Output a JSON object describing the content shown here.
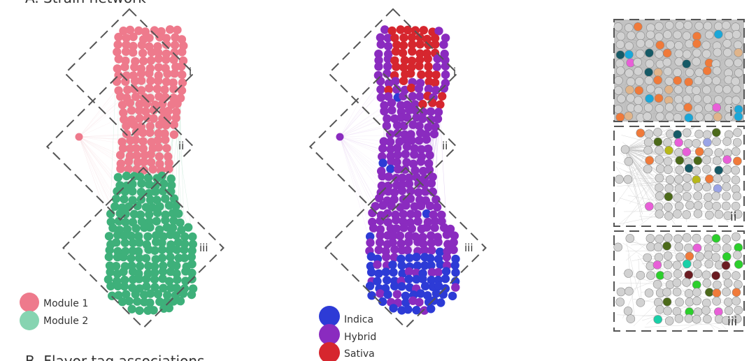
{
  "header": {
    "section_a_title": "A. Strain network",
    "section_b_title": "B. Flavor tag associations"
  },
  "regions": {
    "i": "i",
    "ii": "ii",
    "iii": "iii"
  },
  "legend_modules": [
    {
      "label": "Module 1",
      "color": "#ee7a8c"
    },
    {
      "label": "Module 2",
      "color": "#86d4b1"
    }
  ],
  "legend_types": [
    {
      "label": "Indica",
      "color": "#2d3bd6"
    },
    {
      "label": "Hybrid",
      "color": "#8a2bbf"
    },
    {
      "label": "Sativa",
      "color": "#d6262e"
    }
  ],
  "colors": {
    "module1": "#ee7a8c",
    "module2": "#3eb07a",
    "indica": "#2d3bd6",
    "hybrid": "#8a2bbf",
    "sativa": "#d6262e",
    "edge_gray": "#c8c8c8",
    "zoom_bg": "#bdbdbd",
    "dash": "#555555"
  }
}
